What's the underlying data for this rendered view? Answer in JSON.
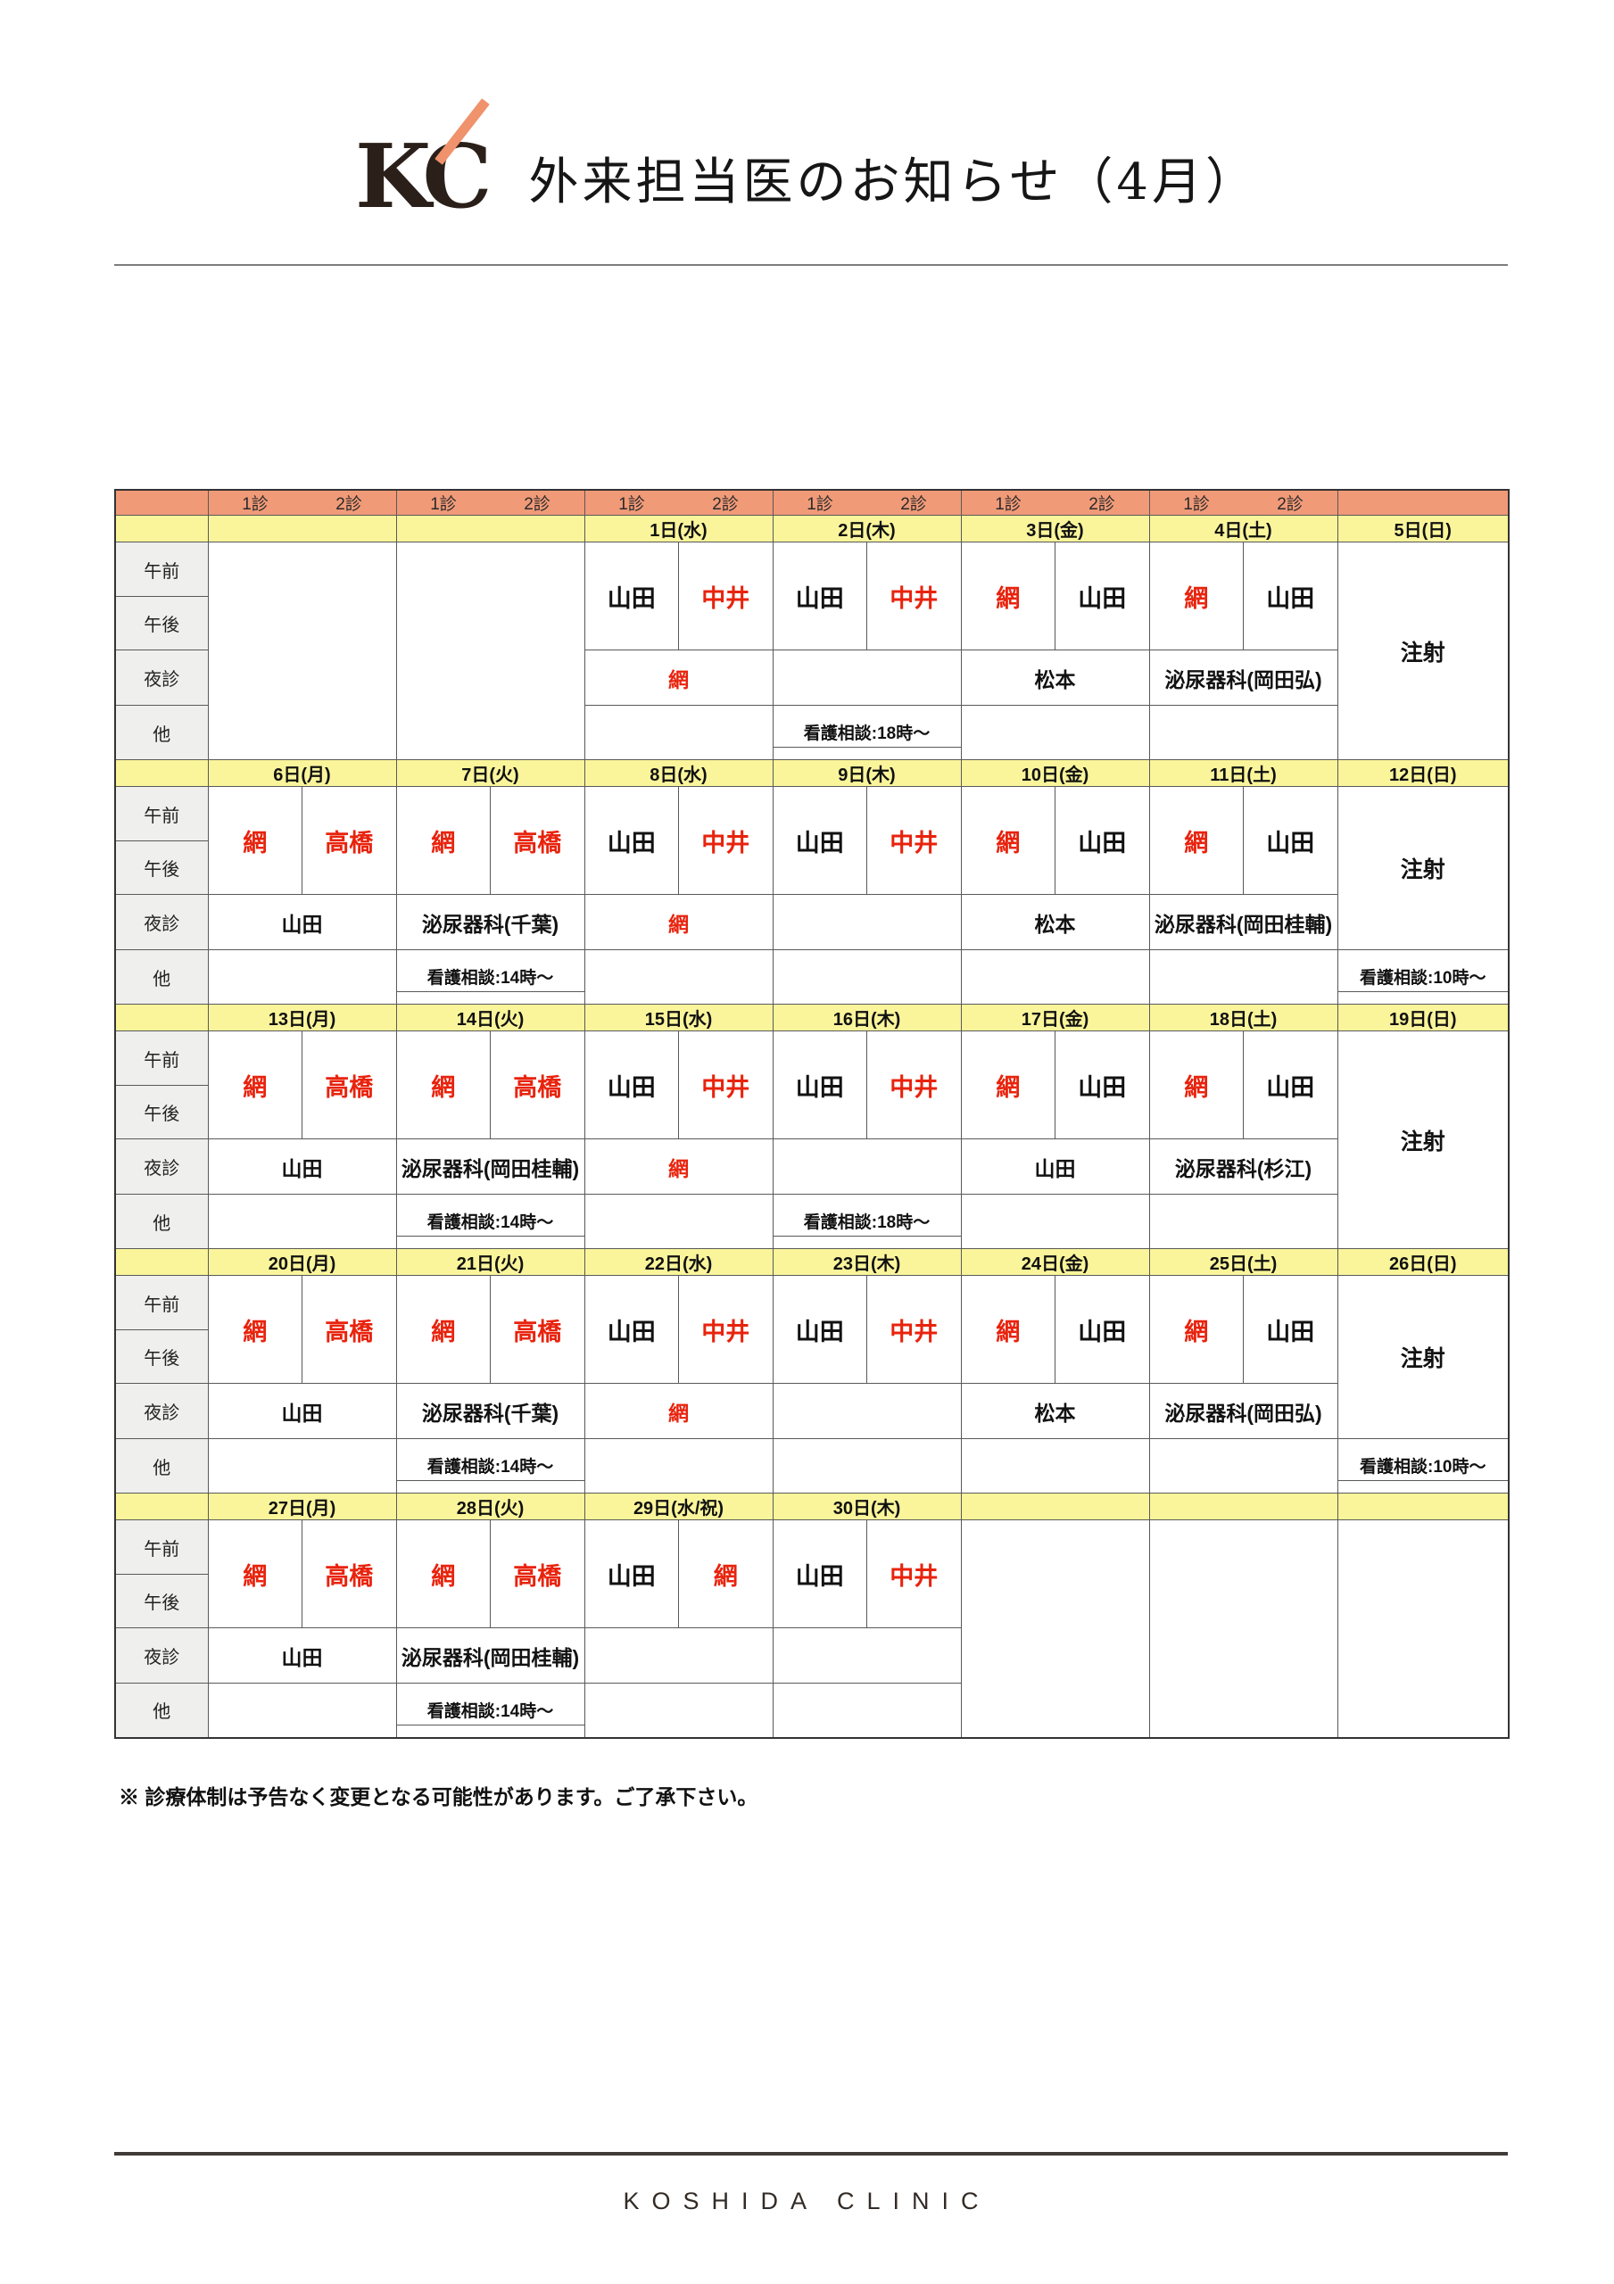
{
  "header": {
    "logo_text": "KC",
    "title": "外来担当医のお知らせ（4月）"
  },
  "colors": {
    "header_orange": "#f09a78",
    "date_yellow": "#faf59b",
    "label_gray": "#efefed",
    "doctor_red": "#e8230d",
    "logo_slash_orange": "#f0926b"
  },
  "table": {
    "exam_labels": {
      "first": "1診",
      "second": "2診"
    },
    "row_labels": [
      "午前",
      "午後",
      "夜診",
      "他"
    ],
    "weeks": [
      {
        "dates": [
          "",
          "",
          "1日(水)",
          "2日(木)",
          "3日(金)",
          "4日(土)",
          "5日(日)"
        ],
        "days": [
          {
            "type": "empty"
          },
          {
            "type": "empty"
          },
          {
            "type": "day",
            "am": [
              {
                "n": "山田",
                "r": false
              },
              {
                "n": "中井",
                "r": true
              }
            ],
            "night": {
              "n": "網",
              "r": true
            },
            "other": ""
          },
          {
            "type": "day",
            "am": [
              {
                "n": "山田",
                "r": false
              },
              {
                "n": "中井",
                "r": true
              }
            ],
            "night": {
              "n": "",
              "r": false
            },
            "other": "看護相談:18時～"
          },
          {
            "type": "day",
            "am": [
              {
                "n": "網",
                "r": true
              },
              {
                "n": "山田",
                "r": false
              }
            ],
            "night": {
              "n": "松本",
              "r": false
            },
            "other": ""
          },
          {
            "type": "day",
            "am": [
              {
                "n": "網",
                "r": true
              },
              {
                "n": "山田",
                "r": false
              }
            ],
            "night": {
              "n": "泌尿器科(岡田弘)",
              "r": false
            },
            "other": ""
          }
        ],
        "sunday": {
          "type": "injection",
          "span": 4,
          "text": "注射",
          "other": ""
        }
      },
      {
        "dates": [
          "6日(月)",
          "7日(火)",
          "8日(水)",
          "9日(木)",
          "10日(金)",
          "11日(土)",
          "12日(日)"
        ],
        "days": [
          {
            "type": "day",
            "am": [
              {
                "n": "網",
                "r": true
              },
              {
                "n": "高橋",
                "r": true
              }
            ],
            "night": {
              "n": "山田",
              "r": false
            },
            "other": ""
          },
          {
            "type": "day",
            "am": [
              {
                "n": "網",
                "r": true
              },
              {
                "n": "高橋",
                "r": true
              }
            ],
            "night": {
              "n": "泌尿器科(千葉)",
              "r": false
            },
            "other": "看護相談:14時～"
          },
          {
            "type": "day",
            "am": [
              {
                "n": "山田",
                "r": false
              },
              {
                "n": "中井",
                "r": true
              }
            ],
            "night": {
              "n": "網",
              "r": true
            },
            "other": ""
          },
          {
            "type": "day",
            "am": [
              {
                "n": "山田",
                "r": false
              },
              {
                "n": "中井",
                "r": true
              }
            ],
            "night": {
              "n": "",
              "r": false
            },
            "other": ""
          },
          {
            "type": "day",
            "am": [
              {
                "n": "網",
                "r": true
              },
              {
                "n": "山田",
                "r": false
              }
            ],
            "night": {
              "n": "松本",
              "r": false
            },
            "other": ""
          },
          {
            "type": "day",
            "am": [
              {
                "n": "網",
                "r": true
              },
              {
                "n": "山田",
                "r": false
              }
            ],
            "night": {
              "n": "泌尿器科(岡田桂輔)",
              "r": false
            },
            "other": ""
          }
        ],
        "sunday": {
          "type": "injection",
          "span": 3,
          "text": "注射",
          "other": "看護相談:10時～"
        }
      },
      {
        "dates": [
          "13日(月)",
          "14日(火)",
          "15日(水)",
          "16日(木)",
          "17日(金)",
          "18日(土)",
          "19日(日)"
        ],
        "days": [
          {
            "type": "day",
            "am": [
              {
                "n": "網",
                "r": true
              },
              {
                "n": "高橋",
                "r": true
              }
            ],
            "night": {
              "n": "山田",
              "r": false
            },
            "other": ""
          },
          {
            "type": "day",
            "am": [
              {
                "n": "網",
                "r": true
              },
              {
                "n": "高橋",
                "r": true
              }
            ],
            "night": {
              "n": "泌尿器科(岡田桂輔)",
              "r": false
            },
            "other": "看護相談:14時～"
          },
          {
            "type": "day",
            "am": [
              {
                "n": "山田",
                "r": false
              },
              {
                "n": "中井",
                "r": true
              }
            ],
            "night": {
              "n": "網",
              "r": true
            },
            "other": ""
          },
          {
            "type": "day",
            "am": [
              {
                "n": "山田",
                "r": false
              },
              {
                "n": "中井",
                "r": true
              }
            ],
            "night": {
              "n": "",
              "r": false
            },
            "other": "看護相談:18時～"
          },
          {
            "type": "day",
            "am": [
              {
                "n": "網",
                "r": true
              },
              {
                "n": "山田",
                "r": false
              }
            ],
            "night": {
              "n": "山田",
              "r": false
            },
            "other": ""
          },
          {
            "type": "day",
            "am": [
              {
                "n": "網",
                "r": true
              },
              {
                "n": "山田",
                "r": false
              }
            ],
            "night": {
              "n": "泌尿器科(杉江)",
              "r": false
            },
            "other": ""
          }
        ],
        "sunday": {
          "type": "injection",
          "span": 4,
          "text": "注射",
          "other": ""
        }
      },
      {
        "dates": [
          "20日(月)",
          "21日(火)",
          "22日(水)",
          "23日(木)",
          "24日(金)",
          "25日(土)",
          "26日(日)"
        ],
        "days": [
          {
            "type": "day",
            "am": [
              {
                "n": "網",
                "r": true
              },
              {
                "n": "高橋",
                "r": true
              }
            ],
            "night": {
              "n": "山田",
              "r": false
            },
            "other": ""
          },
          {
            "type": "day",
            "am": [
              {
                "n": "網",
                "r": true
              },
              {
                "n": "高橋",
                "r": true
              }
            ],
            "night": {
              "n": "泌尿器科(千葉)",
              "r": false
            },
            "other": "看護相談:14時～"
          },
          {
            "type": "day",
            "am": [
              {
                "n": "山田",
                "r": false
              },
              {
                "n": "中井",
                "r": true
              }
            ],
            "night": {
              "n": "網",
              "r": true
            },
            "other": ""
          },
          {
            "type": "day",
            "am": [
              {
                "n": "山田",
                "r": false
              },
              {
                "n": "中井",
                "r": true
              }
            ],
            "night": {
              "n": "",
              "r": false
            },
            "other": ""
          },
          {
            "type": "day",
            "am": [
              {
                "n": "網",
                "r": true
              },
              {
                "n": "山田",
                "r": false
              }
            ],
            "night": {
              "n": "松本",
              "r": false
            },
            "other": ""
          },
          {
            "type": "day",
            "am": [
              {
                "n": "網",
                "r": true
              },
              {
                "n": "山田",
                "r": false
              }
            ],
            "night": {
              "n": "泌尿器科(岡田弘)",
              "r": false
            },
            "other": ""
          }
        ],
        "sunday": {
          "type": "injection",
          "span": 3,
          "text": "注射",
          "other": "看護相談:10時～"
        }
      },
      {
        "dates": [
          "27日(月)",
          "28日(火)",
          "29日(水/祝)",
          "30日(木)",
          "",
          "",
          ""
        ],
        "days": [
          {
            "type": "day",
            "am": [
              {
                "n": "網",
                "r": true
              },
              {
                "n": "高橋",
                "r": true
              }
            ],
            "night": {
              "n": "山田",
              "r": false
            },
            "other": ""
          },
          {
            "type": "day",
            "am": [
              {
                "n": "網",
                "r": true
              },
              {
                "n": "高橋",
                "r": true
              }
            ],
            "night": {
              "n": "泌尿器科(岡田桂輔)",
              "r": false
            },
            "other": "看護相談:14時～"
          },
          {
            "type": "day",
            "am": [
              {
                "n": "山田",
                "r": false
              },
              {
                "n": "網",
                "r": true
              }
            ],
            "night": {
              "n": "",
              "r": false
            },
            "other": ""
          },
          {
            "type": "day",
            "am": [
              {
                "n": "山田",
                "r": false
              },
              {
                "n": "中井",
                "r": true
              }
            ],
            "night": {
              "n": "",
              "r": false
            },
            "other": ""
          },
          {
            "type": "empty"
          },
          {
            "type": "empty"
          }
        ],
        "sunday": {
          "type": "empty"
        }
      }
    ]
  },
  "footnote": "※ 診療体制は予告なく変更となる可能性があります。ご了承下さい。",
  "footer": "KOSHIDA CLINIC"
}
